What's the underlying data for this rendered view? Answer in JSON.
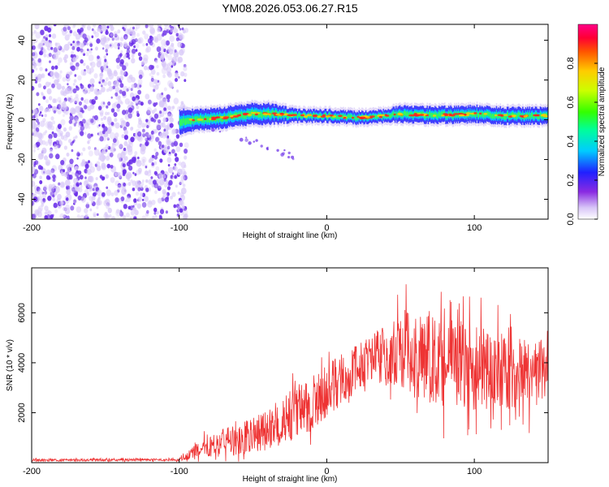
{
  "figure": {
    "title": "YM08.2026.053.06.27.R15"
  },
  "chart_data": [
    {
      "type": "heatmap",
      "name": "spectrogram",
      "xlabel": "Height of straight line (km)",
      "ylabel": "Frequency (Hz)",
      "xlim": [
        -200,
        150
      ],
      "ylim": [
        -50,
        48
      ],
      "x_ticks": [
        -200,
        -100,
        0,
        100
      ],
      "x_tick_labels": [
        "-200",
        "-100",
        "0",
        "100"
      ],
      "y_ticks": [
        -40,
        -20,
        0,
        20,
        40
      ],
      "y_tick_labels": [
        "-40",
        "-20",
        "0",
        "20",
        "40"
      ],
      "noise_region_x": [
        -200,
        -95
      ],
      "ridge": {
        "x": [
          -100,
          -90,
          -80,
          -70,
          -60,
          -50,
          -40,
          -30,
          -20,
          -10,
          0,
          10,
          20,
          30,
          40,
          50,
          60,
          70,
          80,
          90,
          100,
          110,
          120,
          130,
          140,
          150
        ],
        "y": [
          -1,
          0,
          0.5,
          1,
          2,
          3,
          3,
          2.5,
          2,
          2,
          2,
          1.5,
          1,
          1.5,
          2,
          3,
          2.5,
          2.5,
          2.5,
          2.5,
          3,
          2.5,
          2,
          2,
          2,
          2
        ],
        "band_halfwidth_hz": [
          6,
          5,
          5,
          5,
          5,
          5,
          5,
          4,
          3,
          3,
          3,
          3,
          3,
          3,
          3,
          4,
          4,
          4,
          4,
          4,
          4,
          4,
          4,
          4,
          4,
          4
        ]
      },
      "colorbar": {
        "label": "Normalized spectral amplitude",
        "range": [
          0,
          1
        ],
        "ticks": [
          0.0,
          0.2,
          0.4,
          0.6,
          0.8
        ],
        "tick_labels": [
          "0.0",
          "0.2",
          "0.4",
          "0.6",
          "0.8"
        ],
        "colormap": "rainbow"
      },
      "colors": {
        "noise_dark": "#6a2ee8",
        "noise_light": "#d8c8f8",
        "band_edge": "#3a3aff",
        "band_mid": "#00c8ff",
        "band_core": "#33ff55",
        "ridge_peak": "#ff2020"
      }
    },
    {
      "type": "line",
      "name": "snr",
      "xlabel": "Height of straight line (km)",
      "ylabel": "SNR (10 * v/v)",
      "xlim": [
        -200,
        150
      ],
      "ylim": [
        0,
        7800
      ],
      "x_ticks": [
        -200,
        -100,
        0,
        100
      ],
      "x_tick_labels": [
        "-200",
        "-100",
        "0",
        "100"
      ],
      "y_ticks": [
        2000,
        4000,
        6000
      ],
      "y_tick_labels": [
        "2000",
        "4000",
        "6000"
      ],
      "color": "#ee3333",
      "envelope": {
        "x": [
          -200,
          -150,
          -100,
          -90,
          -80,
          -70,
          -60,
          -50,
          -40,
          -30,
          -20,
          -10,
          0,
          10,
          20,
          30,
          40,
          50,
          60,
          70,
          80,
          90,
          100,
          110,
          120,
          130,
          140,
          150
        ],
        "mean": [
          100,
          110,
          120,
          400,
          700,
          800,
          900,
          1100,
          1300,
          1600,
          2000,
          2400,
          2800,
          3300,
          3800,
          4200,
          4400,
          4500,
          4400,
          4300,
          4100,
          3900,
          3800,
          3700,
          3700,
          3600,
          3600,
          3800
        ],
        "spread": [
          60,
          60,
          60,
          350,
          600,
          700,
          800,
          900,
          1000,
          1100,
          1300,
          1400,
          1400,
          1300,
          1200,
          1200,
          1600,
          2000,
          2200,
          2300,
          2300,
          2200,
          2100,
          2000,
          1900,
          1800,
          1700,
          1500
        ]
      }
    }
  ]
}
